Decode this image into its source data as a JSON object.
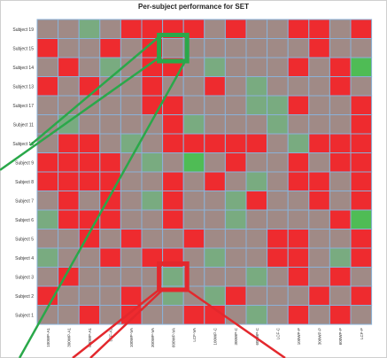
{
  "colors": {
    "bad": "#ee2b2f",
    "mixed": "#a08a86",
    "good": "#79ab80",
    "very_good": "#4fbc55",
    "grid": "#8ab2d8",
    "highlight_green": "#2aa84a",
    "highlight_red": "#e3282d"
  },
  "chart_data": {
    "type": "heatmap",
    "title": "Per-subject performance for SET",
    "rows": [
      "Subject 19",
      "Subject 15",
      "Subject 14",
      "Subject 13",
      "Subject 17",
      "Subject 11",
      "Subject 10",
      "Subject 9",
      "Subject 8",
      "Subject 7",
      "Subject 6",
      "Subject 5",
      "Subject 4",
      "Subject 3",
      "Subject 2",
      "Subject 1"
    ],
    "columns": [
      "100WP-A1",
      "300WP-A1",
      "600WP-A1",
      "LCF-A1",
      "100WP-VA",
      "300WP-VA",
      "600WP-VA",
      "LCF-VA",
      "100WP-C",
      "300WP-C",
      "600WP-C",
      "LCF-C",
      "100WP-P",
      "300WP-P",
      "600WP-P",
      "LCF-P"
    ],
    "value_scale": {
      "0": "bad",
      "1": "mixed",
      "2": "good",
      "3": "very good"
    },
    "values": [
      [
        1,
        1,
        2,
        1,
        0,
        0,
        0,
        0,
        1,
        0,
        1,
        1,
        0,
        0,
        1,
        0
      ],
      [
        0,
        1,
        1,
        0,
        1,
        0,
        1,
        1,
        1,
        1,
        1,
        1,
        1,
        0,
        1,
        1
      ],
      [
        1,
        0,
        1,
        2,
        1,
        0,
        0,
        1,
        2,
        1,
        1,
        1,
        0,
        1,
        0,
        3
      ],
      [
        0,
        1,
        0,
        1,
        1,
        0,
        1,
        1,
        0,
        1,
        2,
        1,
        1,
        1,
        0,
        1
      ],
      [
        1,
        1,
        1,
        1,
        1,
        0,
        0,
        1,
        1,
        1,
        2,
        2,
        0,
        1,
        1,
        0
      ],
      [
        1,
        2,
        1,
        1,
        1,
        1,
        0,
        2,
        1,
        1,
        1,
        2,
        1,
        1,
        1,
        0
      ],
      [
        1,
        0,
        0,
        1,
        2,
        1,
        0,
        0,
        0,
        0,
        0,
        1,
        2,
        0,
        0,
        0
      ],
      [
        0,
        0,
        0,
        0,
        1,
        2,
        1,
        3,
        1,
        0,
        1,
        1,
        0,
        1,
        0,
        0
      ],
      [
        0,
        0,
        0,
        0,
        1,
        1,
        0,
        1,
        0,
        1,
        2,
        1,
        0,
        0,
        1,
        0
      ],
      [
        1,
        0,
        1,
        0,
        1,
        2,
        0,
        1,
        1,
        2,
        0,
        1,
        1,
        0,
        1,
        0
      ],
      [
        2,
        0,
        0,
        0,
        1,
        1,
        0,
        1,
        1,
        2,
        1,
        1,
        1,
        1,
        0,
        3
      ],
      [
        1,
        1,
        0,
        1,
        0,
        1,
        1,
        0,
        1,
        1,
        1,
        0,
        0,
        1,
        1,
        0
      ],
      [
        2,
        1,
        1,
        0,
        1,
        0,
        0,
        1,
        2,
        1,
        1,
        0,
        0,
        1,
        2,
        0
      ],
      [
        1,
        0,
        1,
        1,
        1,
        1,
        2,
        1,
        1,
        1,
        2,
        1,
        0,
        1,
        0,
        1
      ],
      [
        0,
        1,
        1,
        1,
        0,
        1,
        2,
        1,
        2,
        0,
        1,
        1,
        1,
        0,
        1,
        0
      ],
      [
        1,
        1,
        0,
        1,
        0,
        1,
        1,
        0,
        0,
        1,
        2,
        1,
        0,
        1,
        0,
        1
      ]
    ],
    "highlights": [
      {
        "color": "green",
        "row": "Subject 15",
        "column": "600WP-VA"
      },
      {
        "color": "red",
        "row": "Subject 3",
        "column": "600WP-VA"
      }
    ]
  }
}
